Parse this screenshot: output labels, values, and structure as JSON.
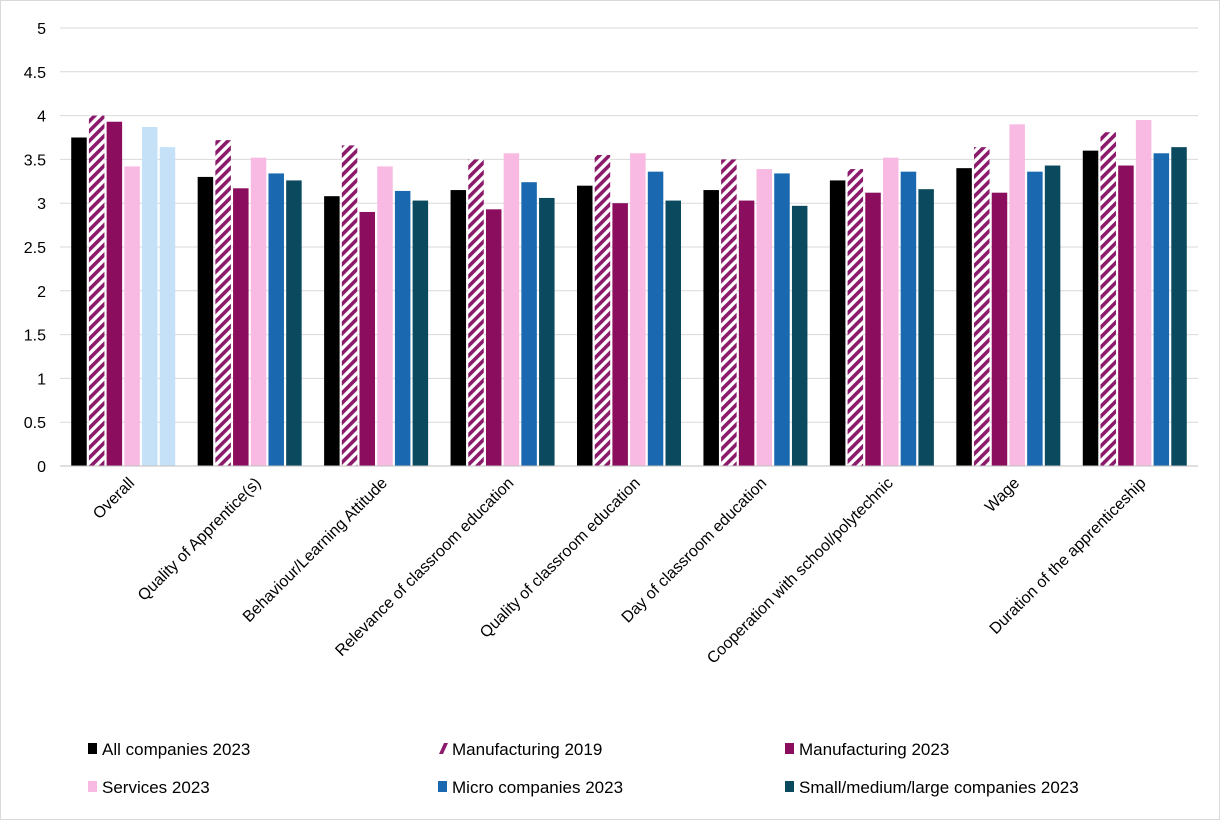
{
  "chart_data": {
    "type": "bar",
    "title": "",
    "xlabel": "",
    "ylabel": "",
    "ylim": [
      0,
      5
    ],
    "yticks": [
      "0",
      "0.5",
      "1",
      "1.5",
      "2",
      "2.5",
      "3",
      "3.5",
      "4",
      "4.5",
      "5"
    ],
    "grid": true,
    "legend_position": "bottom",
    "categories": [
      "Overall",
      "Quality of Apprentice(s)",
      "Behaviour/Learning Attitude",
      "Relevance of classroom education",
      "Quality of classroom education",
      "Day of classroom education",
      "Cooperation with school/polytechnic",
      "Wage",
      "Duration of the apprenticeship"
    ],
    "series": [
      {
        "name": "All companies 2023",
        "color": "#000000",
        "pattern": "solid",
        "values": [
          3.75,
          3.3,
          3.08,
          3.15,
          3.2,
          3.15,
          3.26,
          3.4,
          3.6
        ]
      },
      {
        "name": "Manufacturing 2019",
        "color": "#8b1a6b",
        "pattern": "hatched",
        "values": [
          4.0,
          3.72,
          3.66,
          3.5,
          3.55,
          3.5,
          3.39,
          3.64,
          3.81
        ]
      },
      {
        "name": "Manufacturing 2023",
        "color": "#8b0d5d",
        "pattern": "solid",
        "values": [
          3.93,
          3.17,
          2.9,
          2.93,
          3.0,
          3.03,
          3.12,
          3.12,
          3.43
        ]
      },
      {
        "name": "Services 2023",
        "color": "#f8b9e2",
        "pattern": "solid",
        "values": [
          3.42,
          3.52,
          3.42,
          3.57,
          3.57,
          3.39,
          3.52,
          3.9,
          3.95
        ]
      },
      {
        "name": "Micro companies 2023",
        "color": "#1a69b0",
        "pattern": "solid",
        "values": [
          3.87,
          3.34,
          3.14,
          3.24,
          3.36,
          3.34,
          3.36,
          3.36,
          3.57
        ],
        "first_bar_color": "#c5e1f7"
      },
      {
        "name": "Small/medium/large companies 2023",
        "color": "#0b4a5e",
        "pattern": "solid",
        "values": [
          3.64,
          3.26,
          3.03,
          3.06,
          3.03,
          2.97,
          3.16,
          3.43,
          3.64
        ],
        "first_bar_color": "#c5e1f7"
      }
    ]
  }
}
